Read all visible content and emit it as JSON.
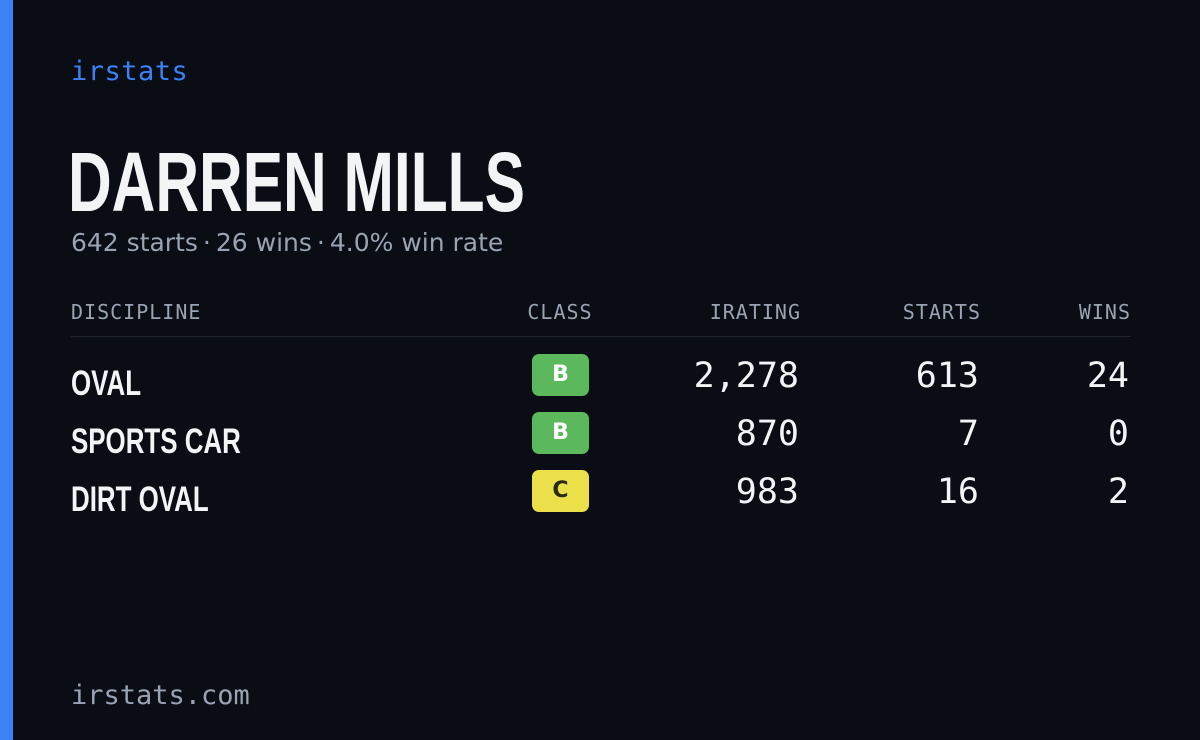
{
  "brand": "irstats",
  "driver": {
    "name": "DARREN MILLS",
    "starts_text": "642 starts",
    "wins_text": "26 wins",
    "win_rate_text": "4.0% win rate",
    "separator": "·"
  },
  "table": {
    "headers": {
      "discipline": "DISCIPLINE",
      "class": "CLASS",
      "irating": "IRATING",
      "starts": "STARTS",
      "wins": "WINS"
    },
    "rows": [
      {
        "discipline": "OVAL",
        "class": "B",
        "class_color": "#5cb85c",
        "class_text_color": "#ffffff",
        "irating": "2,278",
        "starts": "613",
        "wins": "24"
      },
      {
        "discipline": "SPORTS CAR",
        "class": "B",
        "class_color": "#5cb85c",
        "class_text_color": "#ffffff",
        "irating": "870",
        "starts": "7",
        "wins": "0"
      },
      {
        "discipline": "DIRT OVAL",
        "class": "C",
        "class_color": "#ece04a",
        "class_text_color": "#2a2a12",
        "irating": "983",
        "starts": "16",
        "wins": "2"
      }
    ]
  },
  "footer": "irstats.com",
  "colors": {
    "background": "#0a0d14",
    "accent": "#3b82f6",
    "text": "#f3f4f6",
    "muted": "#9aa3b2"
  }
}
